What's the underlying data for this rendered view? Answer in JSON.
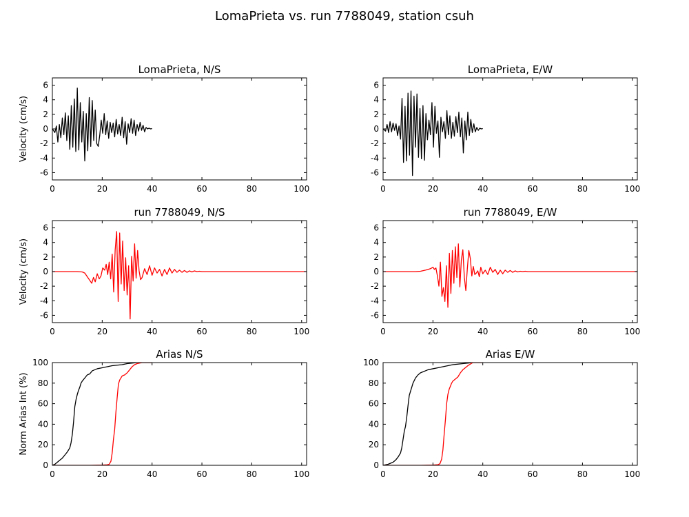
{
  "figure": {
    "title": "LomaPrieta vs. run 7788049, station csuh"
  },
  "colors": {
    "observed": "#000000",
    "simulated": "#ff0000"
  },
  "chart_data": [
    {
      "id": "vel-ns-obs",
      "type": "line",
      "title": "LomaPrieta, N/S",
      "xlabel": "",
      "ylabel": "Velocity (cm/s)",
      "xlim": [
        0,
        102
      ],
      "ylim": [
        -7,
        7
      ],
      "xticks": [
        0,
        20,
        40,
        60,
        80,
        100
      ],
      "yticks": [
        -6,
        -4,
        -2,
        0,
        2,
        4,
        6
      ],
      "series": [
        {
          "color": "#000000",
          "x": [
            0,
            1,
            1.6,
            2.2,
            2.8,
            3.4,
            4,
            4.6,
            5.2,
            5.8,
            6.4,
            7,
            7.6,
            8.2,
            8.8,
            9.4,
            10,
            10.6,
            11.2,
            11.8,
            12.4,
            13,
            13.6,
            14.2,
            14.8,
            15.4,
            16,
            16.6,
            17.2,
            17.8,
            18.4,
            19,
            19.6,
            20.2,
            20.8,
            21.4,
            22,
            22.6,
            23.2,
            23.8,
            24.4,
            25,
            25.6,
            26.2,
            26.8,
            27.4,
            28,
            28.6,
            29.2,
            29.8,
            30.4,
            31,
            31.6,
            32.2,
            32.8,
            33.4,
            34,
            34.6,
            35.2,
            35.8,
            36.4,
            37,
            37.6,
            38.2,
            38.8,
            39.4,
            40
          ],
          "y": [
            0,
            -0.5,
            0.4,
            -1.8,
            0.6,
            -1.2,
            1.5,
            -0.8,
            2.2,
            -1.6,
            1.8,
            -2.8,
            3.2,
            -2.5,
            4.1,
            -3.1,
            5.6,
            -2.9,
            3.6,
            -1.8,
            2.4,
            -4.4,
            2.1,
            -3.0,
            4.3,
            -2.4,
            3.9,
            -1.6,
            2.6,
            -2.0,
            -2.4,
            -0.9,
            1.2,
            -0.6,
            2.1,
            -0.8,
            1.1,
            -1.3,
            0.9,
            -0.5,
            0.8,
            -1.1,
            1.3,
            -0.7,
            0.6,
            -0.9,
            1.6,
            -1.2,
            1.0,
            -2.1,
            0.7,
            -0.5,
            1.4,
            -0.6,
            1.2,
            -0.9,
            0.6,
            -0.3,
            0.9,
            -0.2,
            0.5,
            -0.4,
            0.2,
            0,
            0.1,
            0,
            0.05
          ]
        }
      ]
    },
    {
      "id": "vel-ew-obs",
      "type": "line",
      "title": "LomaPrieta, E/W",
      "xlabel": "",
      "ylabel": "",
      "xlim": [
        0,
        102
      ],
      "ylim": [
        -7,
        7
      ],
      "xticks": [
        0,
        20,
        40,
        60,
        80,
        100
      ],
      "yticks": [
        -6,
        -4,
        -2,
        0,
        2,
        4,
        6
      ],
      "series": [
        {
          "color": "#000000",
          "x": [
            0,
            1,
            1.6,
            2.2,
            2.8,
            3.4,
            4,
            4.6,
            5.2,
            5.8,
            6.4,
            7,
            7.6,
            8.2,
            8.8,
            9.4,
            10,
            10.6,
            11.2,
            11.8,
            12.4,
            13,
            13.6,
            14.2,
            14.8,
            15.4,
            16,
            16.6,
            17.2,
            17.8,
            18.4,
            19,
            19.6,
            20.2,
            20.8,
            21.4,
            22,
            22.6,
            23.2,
            23.8,
            24.4,
            25,
            25.6,
            26.2,
            26.8,
            27.4,
            28,
            28.6,
            29.2,
            29.8,
            30.4,
            31,
            31.6,
            32.2,
            32.8,
            33.4,
            34,
            34.6,
            35.2,
            35.8,
            36.4,
            37,
            37.6,
            38.2,
            38.8,
            39.4,
            40
          ],
          "y": [
            0,
            -0.3,
            0.6,
            -0.5,
            1.0,
            -0.4,
            0.8,
            -0.2,
            0.7,
            -0.9,
            0.4,
            -1.4,
            4.2,
            -4.6,
            3.1,
            -4.4,
            4.9,
            -3.6,
            5.2,
            -6.4,
            4.5,
            -2.5,
            4.8,
            -3.9,
            2.8,
            -4.1,
            3.2,
            -4.3,
            2.1,
            -1.5,
            1.2,
            -0.8,
            3.6,
            -2.5,
            3.1,
            -0.6,
            1.1,
            -3.9,
            1.6,
            -0.4,
            1.0,
            -1.3,
            2.5,
            -0.8,
            1.8,
            -1.3,
            0.9,
            -1.0,
            1.7,
            -0.5,
            2.3,
            -1.1,
            1.5,
            -3.3,
            1.1,
            -1.5,
            2.3,
            -0.9,
            1.3,
            -0.5,
            0.7,
            -0.4,
            0.2,
            -0.2,
            0.1,
            0,
            0.05
          ]
        }
      ]
    },
    {
      "id": "vel-ns-sim",
      "type": "line",
      "title": "run 7788049, N/S",
      "xlabel": "",
      "ylabel": "Velocity (cm/s)",
      "xlim": [
        0,
        102
      ],
      "ylim": [
        -7,
        7
      ],
      "xticks": [
        0,
        20,
        40,
        60,
        80,
        100
      ],
      "yticks": [
        -6,
        -4,
        -2,
        0,
        2,
        4,
        6
      ],
      "series": [
        {
          "color": "#ff0000",
          "x": [
            0,
            5,
            10,
            12,
            13,
            14,
            15,
            15.8,
            16.5,
            17.2,
            18,
            18.8,
            19.5,
            20.2,
            21,
            21.6,
            22.2,
            22.8,
            23.4,
            24,
            24.6,
            25.2,
            25.8,
            26.4,
            27,
            27.6,
            28.2,
            28.8,
            29.4,
            30,
            30.6,
            31.2,
            31.8,
            32.4,
            33,
            33.6,
            34.2,
            34.8,
            35.4,
            36,
            37,
            38,
            39,
            40,
            41,
            42,
            43,
            44,
            45,
            46,
            47,
            48,
            49,
            50,
            51,
            52,
            53,
            54,
            55,
            56,
            57,
            58,
            59,
            60,
            62,
            65,
            70,
            80,
            90,
            102
          ],
          "y": [
            0,
            0,
            0,
            -0.05,
            -0.2,
            -0.7,
            -1.2,
            -1.6,
            -0.8,
            -1.4,
            -0.3,
            -1.0,
            -0.6,
            0.5,
            0.2,
            1.0,
            -0.4,
            1.3,
            -1.0,
            2.4,
            -2.8,
            3.0,
            5.5,
            -4.1,
            5.3,
            -1.7,
            4.2,
            -2.6,
            1.9,
            -3.2,
            0.8,
            -6.5,
            2.1,
            -1.3,
            3.8,
            -0.9,
            2.9,
            0.1,
            -1.1,
            -0.8,
            0.4,
            -0.4,
            0.8,
            -0.5,
            0.5,
            -0.2,
            0.3,
            -0.6,
            0.3,
            -0.4,
            0.5,
            -0.2,
            0.3,
            -0.1,
            0.2,
            -0.1,
            0.15,
            -0.1,
            0.1,
            -0.05,
            0.1,
            0,
            0.05,
            0,
            0,
            0,
            0,
            0,
            0,
            0
          ]
        }
      ]
    },
    {
      "id": "vel-ew-sim",
      "type": "line",
      "title": "run 7788049, E/W",
      "xlabel": "",
      "ylabel": "",
      "xlim": [
        0,
        102
      ],
      "ylim": [
        -7,
        7
      ],
      "xticks": [
        0,
        20,
        40,
        60,
        80,
        100
      ],
      "yticks": [
        -6,
        -4,
        -2,
        0,
        2,
        4,
        6
      ],
      "series": [
        {
          "color": "#ff0000",
          "x": [
            0,
            5,
            10,
            13,
            15,
            17,
            18,
            19,
            20,
            20.6,
            21.2,
            21.8,
            22.4,
            23,
            23.6,
            24.2,
            24.8,
            25.4,
            26,
            26.6,
            27.2,
            27.8,
            28.4,
            29,
            29.6,
            30.2,
            30.8,
            31.4,
            32,
            32.6,
            33.2,
            33.8,
            34.4,
            35,
            35.6,
            36.2,
            36.8,
            37.4,
            38,
            38.6,
            39.2,
            40,
            41,
            42,
            43,
            44,
            45,
            46,
            47,
            48,
            49,
            50,
            51,
            52,
            53,
            54,
            55,
            56,
            57,
            58,
            60,
            62,
            65,
            70,
            80,
            90,
            102
          ],
          "y": [
            0,
            0,
            0,
            0,
            0.05,
            0.2,
            0.3,
            0.4,
            0.6,
            0.3,
            0.5,
            -0.6,
            -2.0,
            1.3,
            -3.4,
            -2.2,
            -4.1,
            0.8,
            -4.9,
            2.5,
            -3.0,
            2.9,
            -1.6,
            3.4,
            -0.8,
            3.8,
            -2.1,
            1.6,
            3.0,
            -0.8,
            -2.6,
            0.4,
            2.9,
            1.8,
            -0.6,
            0.7,
            -0.4,
            -0.2,
            0.1,
            -0.7,
            0.6,
            -0.3,
            0.2,
            -0.4,
            0.6,
            -0.1,
            0.3,
            -0.4,
            0.2,
            -0.3,
            0.2,
            -0.1,
            0.15,
            -0.1,
            0.1,
            -0.05,
            0.05,
            0,
            0.05,
            0,
            0,
            0,
            0,
            0,
            0,
            0,
            0
          ]
        }
      ]
    },
    {
      "id": "arias-ns",
      "type": "line",
      "title": "Arias N/S",
      "xlabel": "",
      "ylabel": "Norm Arias Int (%)",
      "xlim": [
        0,
        102
      ],
      "ylim": [
        0,
        100
      ],
      "xticks": [
        0,
        20,
        40,
        60,
        80,
        100
      ],
      "yticks": [
        0,
        20,
        40,
        60,
        80,
        100
      ],
      "series": [
        {
          "color": "#000000",
          "x": [
            0,
            1,
            2,
            3,
            4,
            5,
            6,
            7,
            7.5,
            8,
            8.5,
            9,
            9.5,
            10,
            10.5,
            11,
            11.5,
            12,
            13,
            14,
            15,
            16,
            17,
            18,
            20,
            22,
            24,
            26,
            28,
            30,
            32,
            34,
            36,
            40
          ],
          "y": [
            0,
            1,
            3,
            5,
            7,
            10,
            13,
            17,
            22,
            30,
            42,
            57,
            64,
            69,
            73,
            76,
            80,
            82,
            85,
            88,
            89,
            92,
            93,
            94,
            95,
            96,
            97,
            97.5,
            98,
            99,
            99.5,
            100,
            100,
            100
          ]
        },
        {
          "color": "#ff0000",
          "x": [
            0,
            10,
            15,
            20,
            22,
            22.8,
            23.5,
            24,
            24.5,
            25,
            25.5,
            26,
            26.5,
            27,
            27.5,
            28,
            29,
            30,
            31,
            32,
            33,
            34,
            36,
            40
          ],
          "y": [
            0,
            0,
            0,
            0.2,
            0.5,
            1,
            4,
            12,
            25,
            35,
            52,
            66,
            79,
            83,
            85,
            87,
            88,
            90,
            93,
            96,
            98,
            99,
            100,
            100
          ]
        }
      ]
    },
    {
      "id": "arias-ew",
      "type": "line",
      "title": "Arias E/W",
      "xlabel": "",
      "ylabel": "",
      "xlim": [
        0,
        102
      ],
      "ylim": [
        0,
        100
      ],
      "xticks": [
        0,
        20,
        40,
        60,
        80,
        100
      ],
      "yticks": [
        0,
        20,
        40,
        60,
        80,
        100
      ],
      "series": [
        {
          "color": "#000000",
          "x": [
            0,
            2,
            4,
            5,
            6,
            7,
            7.5,
            8,
            8.5,
            9,
            9.5,
            10,
            10.5,
            11,
            11.5,
            12,
            13,
            14,
            15,
            16,
            17,
            18,
            20,
            22,
            24,
            26,
            28,
            30,
            32,
            34,
            36,
            40
          ],
          "y": [
            0,
            1,
            3,
            5,
            8,
            12,
            17,
            25,
            33,
            38,
            47,
            58,
            68,
            72,
            76,
            80,
            85,
            88,
            90,
            91,
            92,
            93,
            94,
            95,
            96,
            97,
            98,
            98.5,
            99,
            99.5,
            100,
            100
          ]
        },
        {
          "color": "#ff0000",
          "x": [
            0,
            10,
            15,
            20,
            22,
            22.8,
            23.5,
            24,
            24.5,
            25,
            25.5,
            26,
            26.5,
            27,
            27.5,
            28,
            29,
            30,
            31,
            32,
            33,
            34,
            36,
            40
          ],
          "y": [
            0,
            0,
            0,
            0.2,
            0.6,
            1.5,
            6,
            15,
            30,
            44,
            60,
            69,
            74,
            77,
            80,
            82,
            84,
            86,
            90,
            93,
            95,
            97,
            100,
            100
          ]
        }
      ]
    }
  ]
}
